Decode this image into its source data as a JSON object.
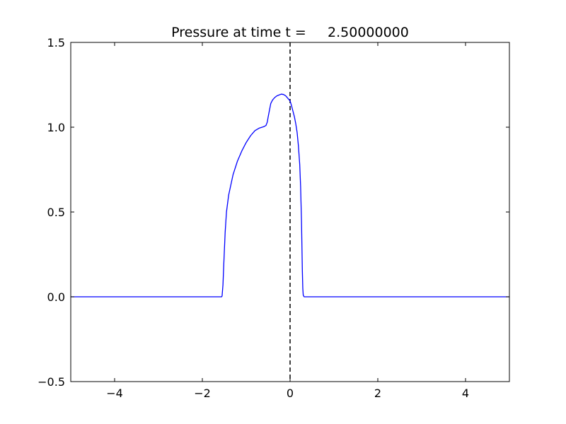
{
  "chart_data": {
    "type": "line",
    "title": "Pressure at time t =     2.50000000",
    "xlabel": "",
    "ylabel": "",
    "xlim": [
      -5,
      5
    ],
    "ylim": [
      -0.5,
      1.5
    ],
    "x_ticks": [
      -4,
      -2,
      0,
      2,
      4
    ],
    "x_tick_labels": [
      "−4",
      "−2",
      "0",
      "2",
      "4"
    ],
    "y_ticks": [
      -0.5,
      0.0,
      0.5,
      1.0,
      1.5
    ],
    "y_tick_labels": [
      "−0.5",
      "0.0",
      "0.5",
      "1.0",
      "1.5"
    ],
    "grid": false,
    "reference_line": {
      "x": 0,
      "style": "dashed",
      "color": "#000000"
    },
    "series": [
      {
        "color": "#0000ff",
        "x": [
          -5.0,
          -1.6,
          -1.56,
          -1.55,
          -1.53,
          -1.51,
          -1.48,
          -1.45,
          -1.4,
          -1.3,
          -1.2,
          -1.1,
          -1.0,
          -0.9,
          -0.8,
          -0.7,
          -0.6,
          -0.55,
          -0.52,
          -0.5,
          -0.47,
          -0.44,
          -0.4,
          -0.35,
          -0.3,
          -0.25,
          -0.2,
          -0.15,
          -0.1,
          -0.05,
          0.0,
          0.03,
          0.06,
          0.1,
          0.13,
          0.16,
          0.19,
          0.22,
          0.24,
          0.26,
          0.27,
          0.28,
          0.29,
          0.3,
          0.32,
          0.35,
          0.4,
          5.0
        ],
        "y": [
          0.0,
          0.0,
          0.0,
          0.005,
          0.07,
          0.2,
          0.38,
          0.5,
          0.6,
          0.72,
          0.8,
          0.86,
          0.91,
          0.95,
          0.98,
          0.995,
          1.003,
          1.01,
          1.03,
          1.06,
          1.1,
          1.14,
          1.16,
          1.175,
          1.185,
          1.19,
          1.195,
          1.193,
          1.185,
          1.17,
          1.155,
          1.13,
          1.1,
          1.06,
          1.02,
          0.97,
          0.89,
          0.78,
          0.65,
          0.45,
          0.3,
          0.15,
          0.05,
          0.01,
          0.0,
          0.0,
          0.0,
          0.0
        ]
      }
    ]
  }
}
